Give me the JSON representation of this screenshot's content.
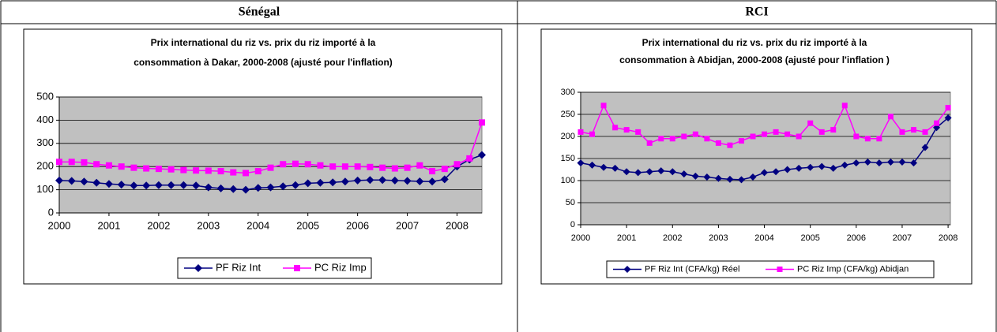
{
  "table": {
    "headers": [
      "Sénégal",
      "RCI"
    ]
  },
  "chart_data": [
    {
      "type": "line",
      "title": [
        "Prix international du riz vs. prix du riz importé à la",
        "consommation à Dakar, 2000-2008 (ajusté pour l'inflation)"
      ],
      "x": [
        2000,
        2000.25,
        2000.5,
        2000.75,
        2001,
        2001.25,
        2001.5,
        2001.75,
        2002,
        2002.25,
        2002.5,
        2002.75,
        2003,
        2003.25,
        2003.5,
        2003.75,
        2004,
        2004.25,
        2004.5,
        2004.75,
        2005,
        2005.25,
        2005.5,
        2005.75,
        2006,
        2006.25,
        2006.5,
        2006.75,
        2007,
        2007.25,
        2007.5,
        2007.75,
        2008,
        2008.25,
        2008.5
      ],
      "series": [
        {
          "name": "PF Riz Int",
          "color": "#000080",
          "marker": "diamond",
          "values": [
            140,
            138,
            135,
            130,
            125,
            122,
            118,
            118,
            120,
            120,
            120,
            118,
            110,
            106,
            103,
            100,
            108,
            110,
            115,
            120,
            128,
            130,
            132,
            135,
            140,
            142,
            142,
            140,
            138,
            136,
            135,
            145,
            200,
            230,
            250
          ]
        },
        {
          "name": "PC Riz Imp",
          "color": "#ff00ff",
          "marker": "square",
          "values": [
            220,
            220,
            218,
            210,
            205,
            200,
            195,
            192,
            190,
            188,
            185,
            183,
            182,
            180,
            175,
            172,
            180,
            195,
            210,
            212,
            210,
            205,
            200,
            200,
            200,
            198,
            195,
            192,
            195,
            205,
            180,
            190,
            210,
            235,
            390
          ]
        }
      ],
      "xlim": [
        2000,
        2008.5
      ],
      "xticks": [
        2000,
        2001,
        2002,
        2003,
        2004,
        2005,
        2006,
        2007,
        2008
      ],
      "ylim": [
        0,
        500
      ],
      "yticks": [
        0,
        100,
        200,
        300,
        400,
        500
      ],
      "grid": true,
      "legend": "bottom"
    },
    {
      "type": "line",
      "title": [
        "Prix international du riz vs. prix du riz importé à la",
        "consommation à Abidjan, 2000-2008 (ajusté pour l'inflation )"
      ],
      "x": [
        2000,
        2000.25,
        2000.5,
        2000.75,
        2001,
        2001.25,
        2001.5,
        2001.75,
        2002,
        2002.25,
        2002.5,
        2002.75,
        2003,
        2003.25,
        2003.5,
        2003.75,
        2004,
        2004.25,
        2004.5,
        2004.75,
        2005,
        2005.25,
        2005.5,
        2005.75,
        2006,
        2006.25,
        2006.5,
        2006.75,
        2007,
        2007.25,
        2007.5,
        2007.75,
        2008
      ],
      "series": [
        {
          "name": "PF Riz Int (CFA/kg) Réel",
          "color": "#000080",
          "marker": "diamond",
          "values": [
            140,
            135,
            130,
            128,
            120,
            118,
            120,
            122,
            120,
            115,
            110,
            108,
            105,
            103,
            102,
            108,
            118,
            120,
            125,
            128,
            130,
            132,
            128,
            135,
            140,
            142,
            140,
            142,
            142,
            140,
            175,
            220,
            242
          ]
        },
        {
          "name": "PC Riz Imp (CFA/kg) Abidjan",
          "color": "#ff00ff",
          "marker": "square",
          "values": [
            210,
            205,
            270,
            220,
            215,
            210,
            185,
            195,
            195,
            200,
            205,
            195,
            185,
            180,
            190,
            200,
            205,
            210,
            205,
            200,
            230,
            210,
            215,
            270,
            200,
            195,
            195,
            245,
            210,
            215,
            210,
            230,
            265
          ]
        }
      ],
      "xlim": [
        2000,
        2008.05
      ],
      "xticks": [
        2000,
        2001,
        2002,
        2003,
        2004,
        2005,
        2006,
        2007,
        2008
      ],
      "ylim": [
        0,
        300
      ],
      "yticks": [
        0,
        50,
        100,
        150,
        200,
        250,
        300
      ],
      "grid": true,
      "legend": "bottom"
    }
  ]
}
